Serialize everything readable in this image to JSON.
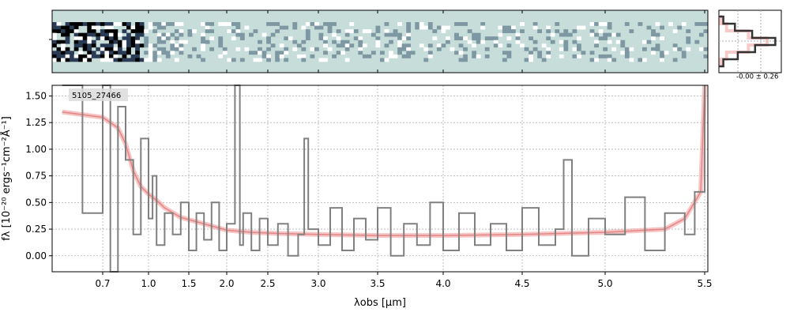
{
  "chart_data": [
    {
      "name": "2d-spectrum-panel",
      "type": "heatmap",
      "colormap": [
        "#ffffff",
        "#c6ddd9",
        "#7d98a3",
        "#2a3b55",
        "#000000"
      ],
      "background": "#c6ddd9",
      "xlim": [
        0.6,
        5.52
      ]
    },
    {
      "name": "1d-spectrum-panel",
      "type": "line",
      "object_label": "5105_27466",
      "xlabel": "λobs [μm]",
      "ylabel": "fλ [10⁻²⁰ ergs⁻¹cm⁻²Å⁻¹]",
      "xlim": [
        0.6,
        5.52
      ],
      "ylim": [
        -0.15,
        1.6
      ],
      "x_ticks": [
        0.7,
        1.0,
        1.5,
        2.0,
        2.5,
        3.0,
        3.5,
        4.0,
        4.5,
        5.0,
        5.5
      ],
      "x_tick_labels": [
        "0.7",
        "1.0",
        "1.5",
        "2.0",
        "2.5",
        "3.0",
        "3.5",
        "4.0",
        "4.5",
        "5.0",
        "5.5"
      ],
      "y_ticks": [
        0.0,
        0.25,
        0.5,
        0.75,
        1.0,
        1.25,
        1.5
      ],
      "y_tick_labels": [
        "0.00",
        "0.25",
        "0.50",
        "0.75",
        "1.00",
        "1.25",
        "1.50"
      ],
      "grid": true,
      "series": [
        {
          "role": "data",
          "color": "#808080",
          "x": [
            0.62,
            0.66,
            0.7,
            0.75,
            0.8,
            0.85,
            0.9,
            0.95,
            1.0,
            1.05,
            1.1,
            1.2,
            1.3,
            1.4,
            1.5,
            1.6,
            1.7,
            1.8,
            1.9,
            2.0,
            2.1,
            2.16,
            2.2,
            2.3,
            2.4,
            2.5,
            2.6,
            2.7,
            2.8,
            2.86,
            2.9,
            3.0,
            3.1,
            3.2,
            3.3,
            3.4,
            3.5,
            3.6,
            3.7,
            3.8,
            3.9,
            4.0,
            4.1,
            4.2,
            4.3,
            4.4,
            4.5,
            4.6,
            4.7,
            4.75,
            4.8,
            4.9,
            5.0,
            5.1,
            5.2,
            5.3,
            5.4,
            5.45,
            5.5
          ],
          "y": [
            1.6,
            0.4,
            1.6,
            -0.15,
            1.4,
            0.9,
            0.2,
            1.1,
            0.35,
            0.75,
            0.1,
            0.4,
            0.2,
            0.5,
            0.05,
            0.4,
            0.15,
            0.5,
            0.05,
            0.3,
            1.6,
            0.1,
            0.4,
            0.05,
            0.35,
            0.1,
            0.3,
            0.0,
            0.2,
            1.1,
            0.25,
            0.1,
            0.45,
            0.05,
            0.35,
            0.15,
            0.45,
            0.0,
            0.3,
            0.1,
            0.5,
            0.05,
            0.4,
            0.1,
            0.3,
            0.05,
            0.45,
            0.1,
            0.25,
            0.9,
            0.0,
            0.35,
            0.2,
            0.55,
            0.05,
            0.4,
            0.2,
            0.6,
            1.6
          ]
        },
        {
          "role": "model",
          "color": "#f4a6a6",
          "x": [
            0.62,
            0.7,
            0.75,
            0.8,
            0.85,
            0.9,
            0.95,
            1.0,
            1.1,
            1.2,
            1.4,
            1.6,
            1.8,
            2.0,
            2.3,
            2.6,
            3.0,
            3.5,
            4.0,
            4.5,
            5.0,
            5.3,
            5.4,
            5.48,
            5.5
          ],
          "y": [
            1.35,
            1.3,
            1.25,
            1.2,
            1.05,
            0.8,
            0.65,
            0.58,
            0.52,
            0.45,
            0.36,
            0.32,
            0.28,
            0.24,
            0.22,
            0.21,
            0.2,
            0.19,
            0.19,
            0.2,
            0.22,
            0.25,
            0.35,
            0.6,
            1.6
          ]
        }
      ]
    },
    {
      "name": "histogram-panel",
      "type": "line",
      "annotation": "-0.00 ± 0.26",
      "data_color": "#333333",
      "model_color": "#f4a6a6",
      "bins": [
        -3,
        -2,
        -1,
        0,
        1,
        2,
        3
      ],
      "counts": [
        0.05,
        0.25,
        0.55,
        0.95,
        0.6,
        0.3,
        0.05
      ]
    }
  ]
}
